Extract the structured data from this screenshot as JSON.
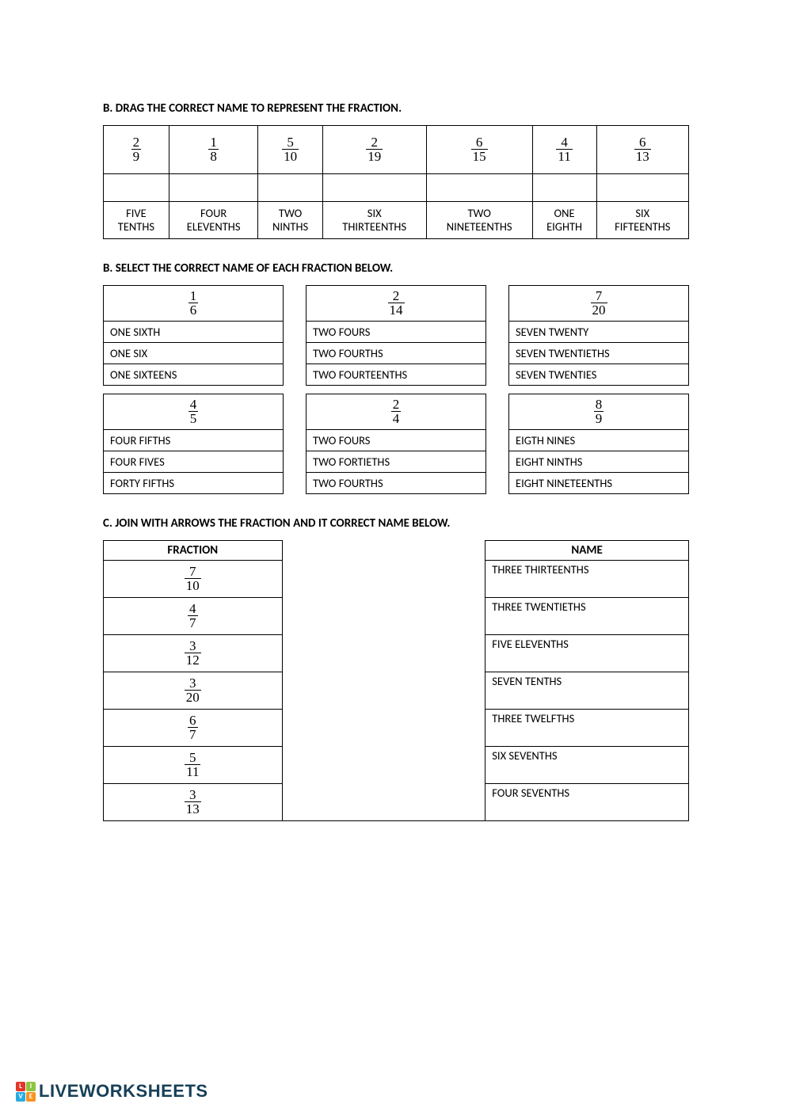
{
  "colors": {
    "text": "#000000",
    "border": "#000000",
    "footer_text": "#174057",
    "logo": {
      "l": "#e6342a",
      "i": "#8cc63f",
      "v": "#29abe2",
      "e": "#f7931e"
    }
  },
  "sectionB1": {
    "title": "B. DRAG THE CORRECT NAME TO REPRESENT THE FRACTION.",
    "fractions": [
      {
        "n": "2",
        "d": "9"
      },
      {
        "n": "1",
        "d": "8"
      },
      {
        "n": "5",
        "d": "10"
      },
      {
        "n": "2",
        "d": "19"
      },
      {
        "n": "6",
        "d": "15"
      },
      {
        "n": "4",
        "d": "11"
      },
      {
        "n": "6",
        "d": "13"
      }
    ],
    "labels": [
      "FIVE TENTHS",
      "FOUR ELEVENTHS",
      "TWO NINTHS",
      "SIX THIRTEENTHS",
      "TWO NINETEENTHS",
      "ONE EIGHTH",
      "SIX FIFTEENTHS"
    ]
  },
  "sectionB2": {
    "title": "B. SELECT THE CORRECT NAME OF EACH FRACTION BELOW.",
    "row1": [
      {
        "frac": {
          "n": "1",
          "d": "6"
        },
        "opts": [
          "ONE SIXTH",
          "ONE SIX",
          "ONE SIXTEENS"
        ]
      },
      {
        "frac": {
          "n": "2",
          "d": "14"
        },
        "opts": [
          "TWO FOURS",
          "TWO FOURTHS",
          "TWO FOURTEENTHS"
        ]
      },
      {
        "frac": {
          "n": "7",
          "d": "20"
        },
        "opts": [
          "SEVEN TWENTY",
          "SEVEN TWENTIETHS",
          "SEVEN TWENTIES"
        ]
      }
    ],
    "row2": [
      {
        "frac": {
          "n": "4",
          "d": "5"
        },
        "opts": [
          "FOUR FIFTHS",
          "FOUR FIVES",
          "FORTY FIFTHS"
        ]
      },
      {
        "frac": {
          "n": "2",
          "d": "4"
        },
        "opts": [
          "TWO FOURS",
          "TWO FORTIETHS",
          "TWO FOURTHS"
        ]
      },
      {
        "frac": {
          "n": "8",
          "d": "9"
        },
        "opts": [
          "EIGTH NINES",
          "EIGHT NINTHS",
          "EIGHT NINETEENTHS"
        ]
      }
    ]
  },
  "sectionC": {
    "title": "C. JOIN WITH ARROWS THE FRACTION AND IT CORRECT NAME BELOW.",
    "headers": {
      "left": "FRACTION",
      "right": "NAME"
    },
    "rows": [
      {
        "frac": {
          "n": "7",
          "d": "10"
        },
        "name": "THREE THIRTEENTHS"
      },
      {
        "frac": {
          "n": "4",
          "d": "7"
        },
        "name": "THREE TWENTIETHS"
      },
      {
        "frac": {
          "n": "3",
          "d": "12"
        },
        "name": "FIVE ELEVENTHS"
      },
      {
        "frac": {
          "n": "3",
          "d": "20"
        },
        "name": "SEVEN TENTHS"
      },
      {
        "frac": {
          "n": "6",
          "d": "7"
        },
        "name": "THREE TWELFTHS"
      },
      {
        "frac": {
          "n": "5",
          "d": "11"
        },
        "name": "SIX SEVENTHS"
      },
      {
        "frac": {
          "n": "3",
          "d": "13"
        },
        "name": "FOUR SEVENTHS"
      }
    ]
  },
  "footer": {
    "brand": "LIVEWORKSHEETS"
  }
}
